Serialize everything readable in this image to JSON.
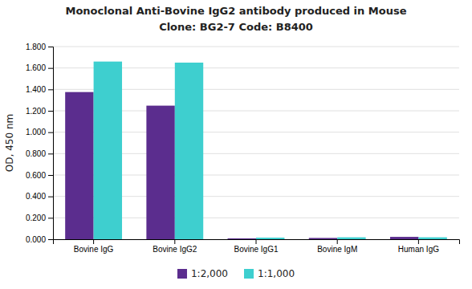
{
  "chart_data": {
    "type": "bar",
    "title": "Monoclonal Anti-Bovine IgG2 antibody produced in Mouse",
    "subtitle": "Clone: BG2-7  Code: B8400",
    "categories": [
      "Bovine IgG",
      "Bovine IgG2",
      "Bovine IgG1",
      "Bovine IgM",
      "Human IgG"
    ],
    "series": [
      {
        "name": "1:2,000",
        "color": "#5b2d8e",
        "values": [
          1.375,
          1.248,
          0.008,
          0.012,
          0.022
        ]
      },
      {
        "name": "1:1,000",
        "color": "#3ecfcf",
        "values": [
          1.66,
          1.65,
          0.015,
          0.018,
          0.018
        ]
      }
    ],
    "y_label": "OD, 450 nm",
    "ylim": [
      0.0,
      1.8
    ],
    "yticks": [
      {
        "value": 0.0,
        "label": "0.000"
      },
      {
        "value": 0.2,
        "label": "0.200"
      },
      {
        "value": 0.4,
        "label": "0.400"
      },
      {
        "value": 0.6,
        "label": "0.600"
      },
      {
        "value": 0.8,
        "label": "0.800"
      },
      {
        "value": 1.0,
        "label": "1.000"
      },
      {
        "value": 1.2,
        "label": "1.200"
      },
      {
        "value": 1.4,
        "label": "1.400"
      },
      {
        "value": 1.6,
        "label": "1.600"
      },
      {
        "value": 1.8,
        "label": "1.800"
      }
    ],
    "grid": true,
    "legend": "bottom"
  }
}
